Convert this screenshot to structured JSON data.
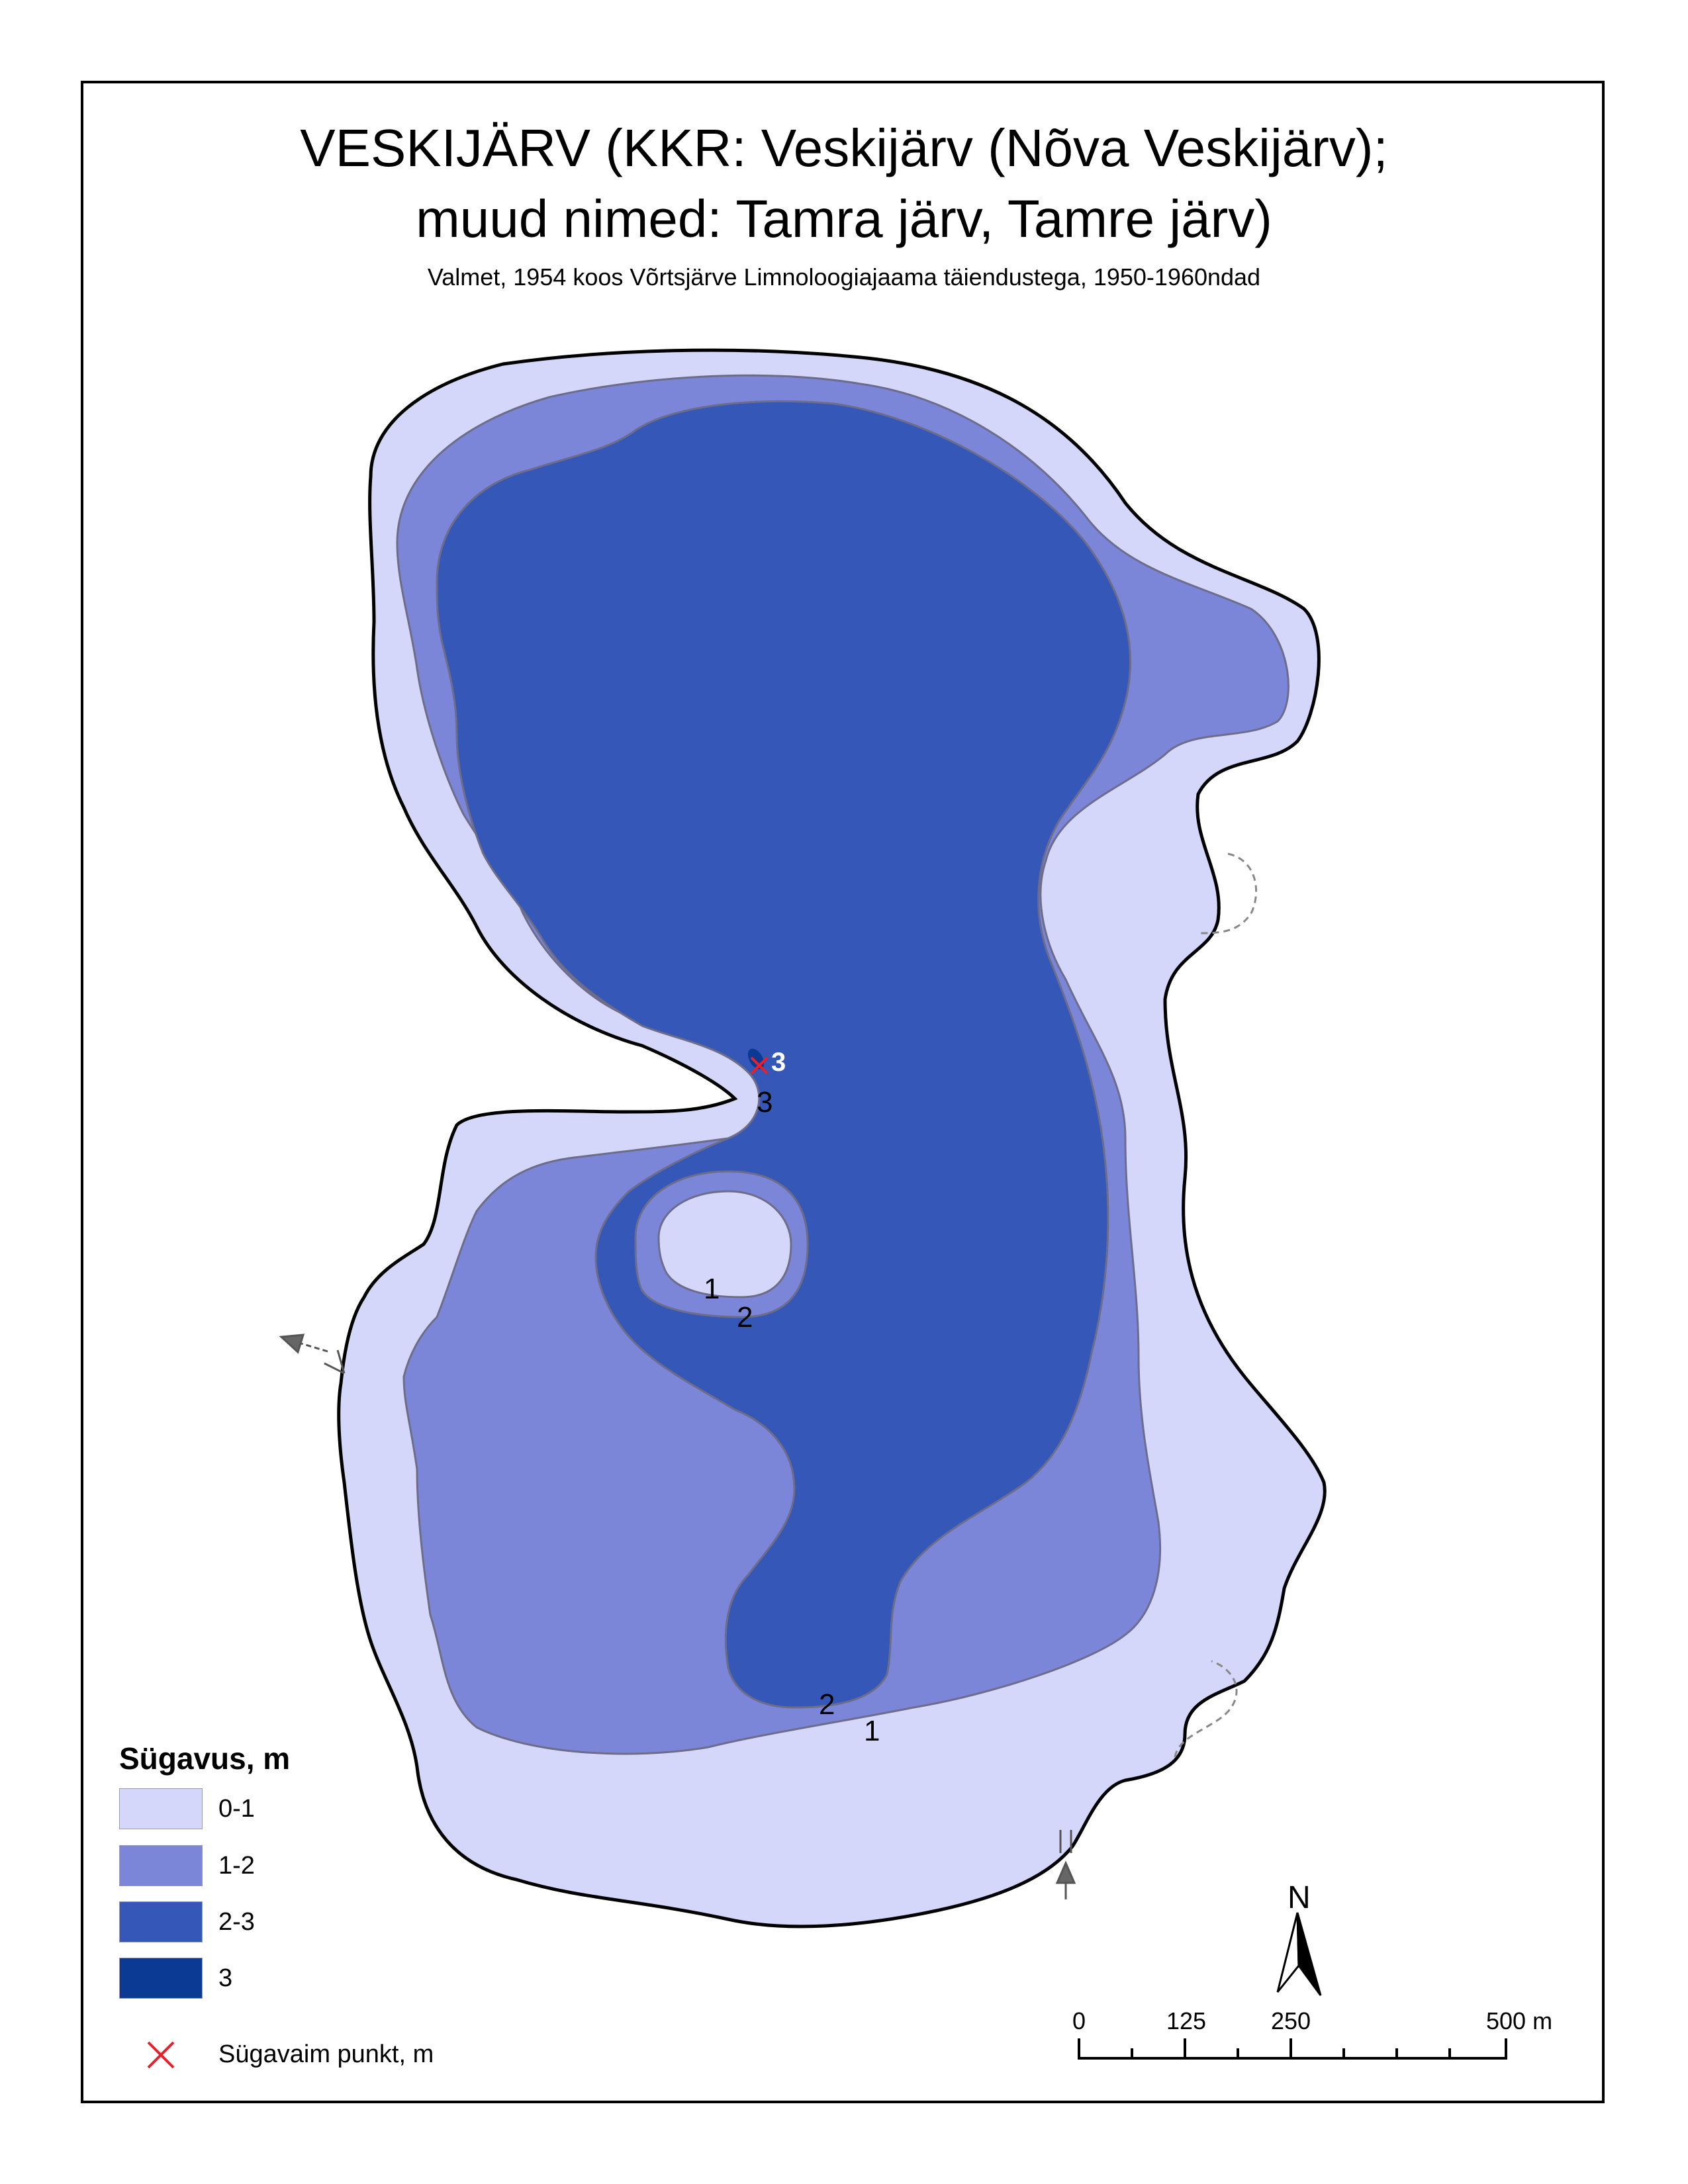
{
  "title": {
    "line1": "VESKIJÄRV (KKR: Veskijärv (Nõva Veskijärv);",
    "line2": "muud nimed: Tamra järv, Tamre järv)",
    "subtitle": "Valmet, 1954 koos Võrtsjärve Limnoloogiajaama täiendustega, 1950-1960ndad"
  },
  "legend": {
    "title": "Sügavus, m",
    "classes": [
      {
        "label": "0-1",
        "color": "#d4d6fa"
      },
      {
        "label": "1-2",
        "color": "#7b86d9"
      },
      {
        "label": "2-3",
        "color": "#3457b8"
      },
      {
        "label": "3",
        "color": "#0a3a94"
      }
    ],
    "deepest_point_label": "Sügavaim punkt, m",
    "deepest_point_color": "#e8202a"
  },
  "depth_labels": {
    "deep_white": "3",
    "deep_black": "3",
    "island_1": "1",
    "island_2": "2",
    "south_2": "2",
    "south_1": "1"
  },
  "north_arrow": {
    "letter": "N"
  },
  "scale_bar": {
    "labels": [
      "0",
      "125",
      "250",
      "500 m"
    ]
  },
  "colors": {
    "shore": "#000000",
    "contour": "#6d6d8a",
    "stream": "#888888"
  }
}
